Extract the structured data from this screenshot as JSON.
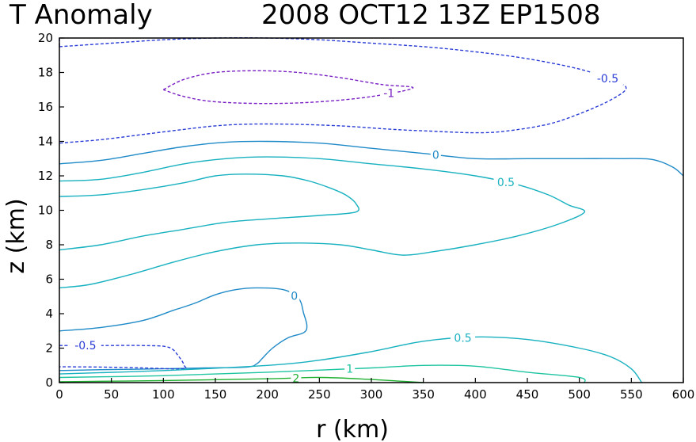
{
  "chart_data": {
    "type": "contour",
    "title_left": "T Anomaly",
    "title_right": "2008  OCT12  13Z   EP1508",
    "xlabel": "r  (km)",
    "ylabel": "z  (km)",
    "xlim": [
      0,
      600
    ],
    "ylim": [
      0,
      20
    ],
    "xticks": [
      0,
      50,
      100,
      150,
      200,
      250,
      300,
      350,
      400,
      450,
      500,
      550,
      600
    ],
    "yticks": [
      0,
      2,
      4,
      6,
      8,
      10,
      12,
      14,
      16,
      18,
      20
    ],
    "xtick_labels": [
      "0",
      "50",
      "100",
      "150",
      "200",
      "250",
      "300",
      "350",
      "400",
      "450",
      "500",
      "550",
      "600"
    ],
    "ytick_labels": [
      "0",
      "2",
      "4",
      "6",
      "8",
      "10",
      "12",
      "14",
      "16",
      "18",
      "20"
    ],
    "contours": [
      {
        "level": -0.5,
        "label": "-0.5",
        "color": "#2a3cd6",
        "dashed": true,
        "points": [
          [
            0,
            19.5
          ],
          [
            50,
            19.7
          ],
          [
            100,
            19.9
          ],
          [
            150,
            20
          ],
          [
            200,
            20
          ],
          [
            250,
            19.9
          ],
          [
            300,
            19.7
          ],
          [
            350,
            19.5
          ],
          [
            400,
            19.2
          ],
          [
            450,
            18.8
          ],
          [
            500,
            18.2
          ],
          [
            530,
            17.6
          ],
          [
            545,
            17.1
          ],
          [
            530,
            16.4
          ],
          [
            500,
            15.6
          ],
          [
            470,
            15.0
          ],
          [
            430,
            14.6
          ],
          [
            400,
            14.5
          ],
          [
            355,
            14.6
          ],
          [
            320,
            14.7
          ],
          [
            270,
            14.9
          ],
          [
            220,
            15.0
          ],
          [
            180,
            15.0
          ],
          [
            150,
            14.9
          ],
          [
            120,
            14.7
          ],
          [
            80,
            14.4
          ],
          [
            40,
            14.1
          ],
          [
            0,
            13.9
          ]
        ]
      },
      {
        "level": -0.5,
        "label": "",
        "color": "#2a3cd6",
        "dashed": true,
        "points": [
          [
            0,
            20.0
          ],
          [
            0,
            19.5
          ]
        ]
      },
      {
        "level": -1,
        "label": "-1",
        "color": "#7a1fc4",
        "dashed": true,
        "points": [
          [
            100,
            17.0
          ],
          [
            120,
            17.6
          ],
          [
            150,
            18.0
          ],
          [
            190,
            18.1
          ],
          [
            230,
            18.0
          ],
          [
            270,
            17.7
          ],
          [
            310,
            17.3
          ],
          [
            340,
            17.1
          ],
          [
            300,
            16.6
          ],
          [
            250,
            16.3
          ],
          [
            200,
            16.2
          ],
          [
            150,
            16.3
          ],
          [
            120,
            16.6
          ],
          [
            100,
            17.0
          ]
        ]
      },
      {
        "level": 0,
        "label": "0",
        "color": "#1f8ac8",
        "dashed": false,
        "points": [
          [
            0,
            12.7
          ],
          [
            40,
            12.9
          ],
          [
            80,
            13.3
          ],
          [
            120,
            13.7
          ],
          [
            160,
            13.95
          ],
          [
            200,
            14.0
          ],
          [
            250,
            13.9
          ],
          [
            300,
            13.6
          ],
          [
            350,
            13.3
          ],
          [
            400,
            13.0
          ],
          [
            450,
            13.0
          ],
          [
            500,
            13.0
          ],
          [
            540,
            13.0
          ],
          [
            570,
            12.95
          ],
          [
            590,
            12.5
          ],
          [
            600,
            12.0
          ]
        ]
      },
      {
        "level": 0.5,
        "label": "0.5",
        "color": "#17b1c0",
        "dashed": false,
        "points": [
          [
            0,
            11.7
          ],
          [
            40,
            11.8
          ],
          [
            80,
            12.2
          ],
          [
            120,
            12.7
          ],
          [
            160,
            13.0
          ],
          [
            200,
            13.1
          ],
          [
            250,
            13.0
          ],
          [
            300,
            12.7
          ],
          [
            350,
            12.4
          ],
          [
            400,
            12.0
          ],
          [
            440,
            11.5
          ],
          [
            470,
            10.9
          ],
          [
            490,
            10.3
          ],
          [
            505,
            9.9
          ],
          [
            480,
            9.2
          ],
          [
            440,
            8.5
          ],
          [
            400,
            8.0
          ],
          [
            360,
            7.6
          ],
          [
            330,
            7.4
          ],
          [
            300,
            7.7
          ],
          [
            270,
            8.0
          ],
          [
            230,
            8.1
          ],
          [
            190,
            8.0
          ],
          [
            150,
            7.6
          ],
          [
            110,
            7.0
          ],
          [
            70,
            6.3
          ],
          [
            30,
            5.7
          ],
          [
            0,
            5.5
          ]
        ]
      },
      {
        "level": 0.5,
        "label": "",
        "color": "#17b1c0",
        "dashed": false,
        "points": [
          [
            0,
            7.7
          ],
          [
            40,
            8.0
          ],
          [
            80,
            8.5
          ],
          [
            120,
            8.9
          ],
          [
            160,
            9.3
          ],
          [
            200,
            9.5
          ],
          [
            250,
            9.7
          ],
          [
            285,
            9.9
          ],
          [
            285,
            10.4
          ],
          [
            275,
            10.9
          ],
          [
            260,
            11.3
          ],
          [
            240,
            11.7
          ],
          [
            215,
            12.0
          ],
          [
            180,
            12.1
          ],
          [
            150,
            12.0
          ],
          [
            120,
            11.6
          ],
          [
            80,
            11.2
          ],
          [
            40,
            10.9
          ],
          [
            0,
            10.8
          ]
        ]
      },
      {
        "level": 0,
        "label": "0",
        "color": "#1f8ac8",
        "dashed": false,
        "points": [
          [
            0,
            3.0
          ],
          [
            40,
            3.2
          ],
          [
            80,
            3.6
          ],
          [
            110,
            4.2
          ],
          [
            130,
            4.6
          ],
          [
            150,
            5.1
          ],
          [
            170,
            5.4
          ],
          [
            190,
            5.5
          ],
          [
            215,
            5.4
          ],
          [
            230,
            4.9
          ],
          [
            235,
            4.0
          ],
          [
            238,
            3.3
          ],
          [
            235,
            2.9
          ],
          [
            220,
            2.6
          ],
          [
            205,
            2.0
          ],
          [
            195,
            1.4
          ],
          [
            190,
            1.1
          ],
          [
            180,
            0.9
          ],
          [
            140,
            0.85
          ],
          [
            100,
            0.8
          ],
          [
            40,
            0.75
          ],
          [
            0,
            0.7
          ]
        ]
      },
      {
        "level": -0.5,
        "label": "-0.5",
        "color": "#2a3cd6",
        "dashed": true,
        "points": [
          [
            0,
            2.15
          ],
          [
            40,
            2.15
          ],
          [
            80,
            2.15
          ],
          [
            105,
            2.05
          ],
          [
            115,
            1.5
          ],
          [
            120,
            1.0
          ],
          [
            118,
            0.8
          ],
          [
            80,
            0.85
          ],
          [
            40,
            0.9
          ],
          [
            0,
            0.92
          ]
        ]
      },
      {
        "level": 0.5,
        "label": "0.5",
        "color": "#17b1c0",
        "dashed": false,
        "points": [
          [
            0,
            0.5
          ],
          [
            100,
            0.7
          ],
          [
            200,
            1.0
          ],
          [
            250,
            1.3
          ],
          [
            300,
            1.8
          ],
          [
            350,
            2.4
          ],
          [
            400,
            2.65
          ],
          [
            450,
            2.5
          ],
          [
            500,
            2.0
          ],
          [
            530,
            1.5
          ],
          [
            550,
            0.8
          ],
          [
            560,
            0.0
          ]
        ]
      },
      {
        "level": 1,
        "label": "1",
        "color": "#1dc4a0",
        "dashed": false,
        "points": [
          [
            0,
            0.3
          ],
          [
            100,
            0.4
          ],
          [
            200,
            0.6
          ],
          [
            300,
            0.85
          ],
          [
            350,
            1.0
          ],
          [
            400,
            0.95
          ],
          [
            450,
            0.6
          ],
          [
            500,
            0.3
          ],
          [
            505,
            0.0
          ]
        ]
      },
      {
        "level": 2,
        "label": "2",
        "color": "#1fb030",
        "dashed": false,
        "points": [
          [
            0,
            0.05
          ],
          [
            100,
            0.12
          ],
          [
            200,
            0.22
          ],
          [
            250,
            0.3
          ],
          [
            300,
            0.18
          ],
          [
            350,
            0.0
          ]
        ]
      }
    ]
  }
}
